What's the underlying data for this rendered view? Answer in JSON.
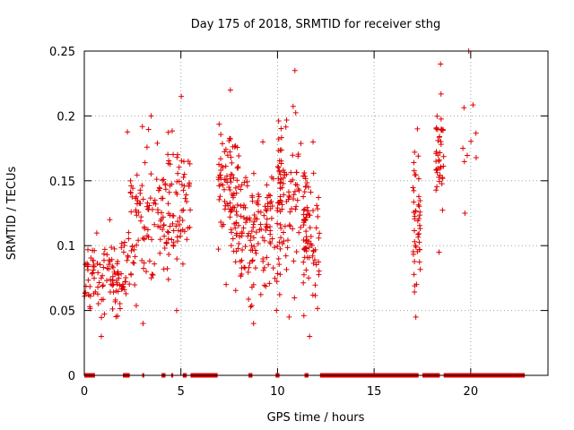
{
  "chart_data": {
    "type": "scatter",
    "title": "Day 175 of 2018, SRMTID for receiver sthg",
    "xlabel": "GPS time / hours",
    "ylabel": "SRMTID / TECUs",
    "xlim": [
      0,
      24
    ],
    "ylim": [
      0,
      0.25
    ],
    "xticks": [
      0,
      5,
      10,
      15,
      20
    ],
    "xtick_labels": [
      "0",
      "5",
      "10",
      "15",
      "20"
    ],
    "yticks": [
      0,
      0.05,
      0.1,
      0.15,
      0.2,
      0.25
    ],
    "ytick_labels": [
      "0",
      "0.05",
      "0.1",
      "0.15",
      "0.2",
      "0.25"
    ],
    "grid": true,
    "marker": "+",
    "color": "#e00000",
    "clusters": [
      {
        "x_start": 0.0,
        "x_end": 2.2,
        "y_min": 0.03,
        "y_max": 0.12,
        "count": 110
      },
      {
        "x_start": 2.2,
        "x_end": 4.3,
        "y_min": 0.04,
        "y_max": 0.2,
        "count": 110
      },
      {
        "x_start": 4.3,
        "x_end": 5.5,
        "y_min": 0.05,
        "y_max": 0.215,
        "count": 70
      },
      {
        "x_start": 6.9,
        "x_end": 8.0,
        "y_min": 0.07,
        "y_max": 0.22,
        "count": 80
      },
      {
        "x_start": 7.8,
        "x_end": 10.2,
        "y_min": 0.04,
        "y_max": 0.18,
        "count": 150
      },
      {
        "x_start": 10.0,
        "x_end": 11.5,
        "y_min": 0.045,
        "y_max": 0.235,
        "count": 100
      },
      {
        "x_start": 11.3,
        "x_end": 12.2,
        "y_min": 0.03,
        "y_max": 0.18,
        "count": 60
      },
      {
        "x_start": 17.0,
        "x_end": 17.4,
        "y_min": 0.045,
        "y_max": 0.19,
        "count": 45
      },
      {
        "x_start": 18.2,
        "x_end": 18.6,
        "y_min": 0.095,
        "y_max": 0.24,
        "count": 40
      },
      {
        "x_start": 19.3,
        "x_end": 20.3,
        "y_min": 0.125,
        "y_max": 0.25,
        "count": 8
      }
    ],
    "zero_segments": [
      [
        0.0,
        0.55
      ],
      [
        2.0,
        2.35
      ],
      [
        3.0,
        3.1
      ],
      [
        4.0,
        4.2
      ],
      [
        4.5,
        4.6
      ],
      [
        5.1,
        5.3
      ],
      [
        5.5,
        6.9
      ],
      [
        8.5,
        8.7
      ],
      [
        9.9,
        10.1
      ],
      [
        11.4,
        11.6
      ],
      [
        12.2,
        17.3
      ],
      [
        17.5,
        18.4
      ],
      [
        18.6,
        22.8
      ]
    ]
  }
}
